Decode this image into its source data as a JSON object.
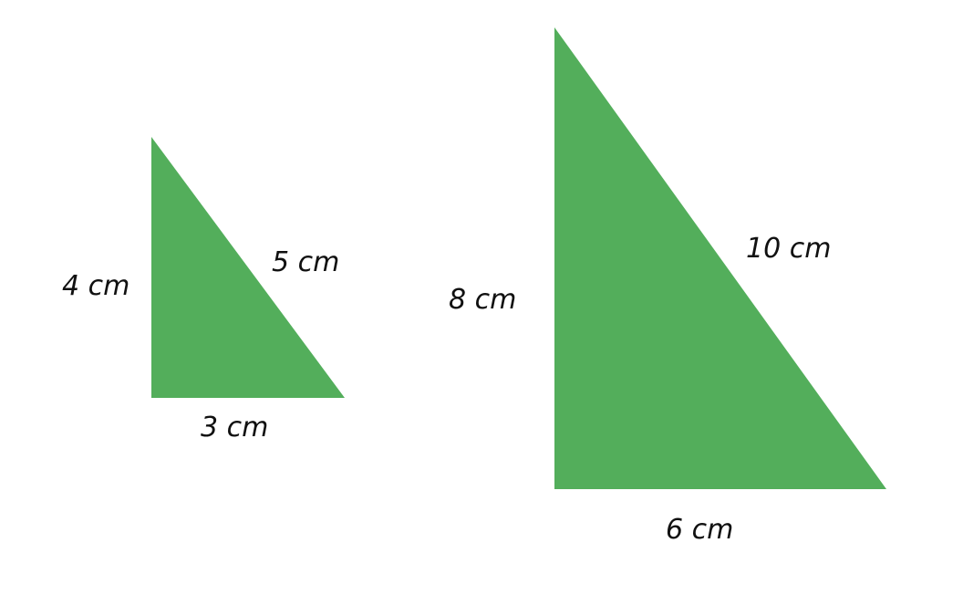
{
  "colors": {
    "triangle_fill": "#53AE5B",
    "label_color": "#111111",
    "background": "#ffffff"
  },
  "triangles": [
    {
      "name": "small",
      "labels": {
        "vertical": "4 cm",
        "hypotenuse": "5 cm",
        "base": "3 cm"
      }
    },
    {
      "name": "large",
      "labels": {
        "vertical": "8 cm",
        "hypotenuse": "10 cm",
        "base": "6 cm"
      }
    }
  ]
}
